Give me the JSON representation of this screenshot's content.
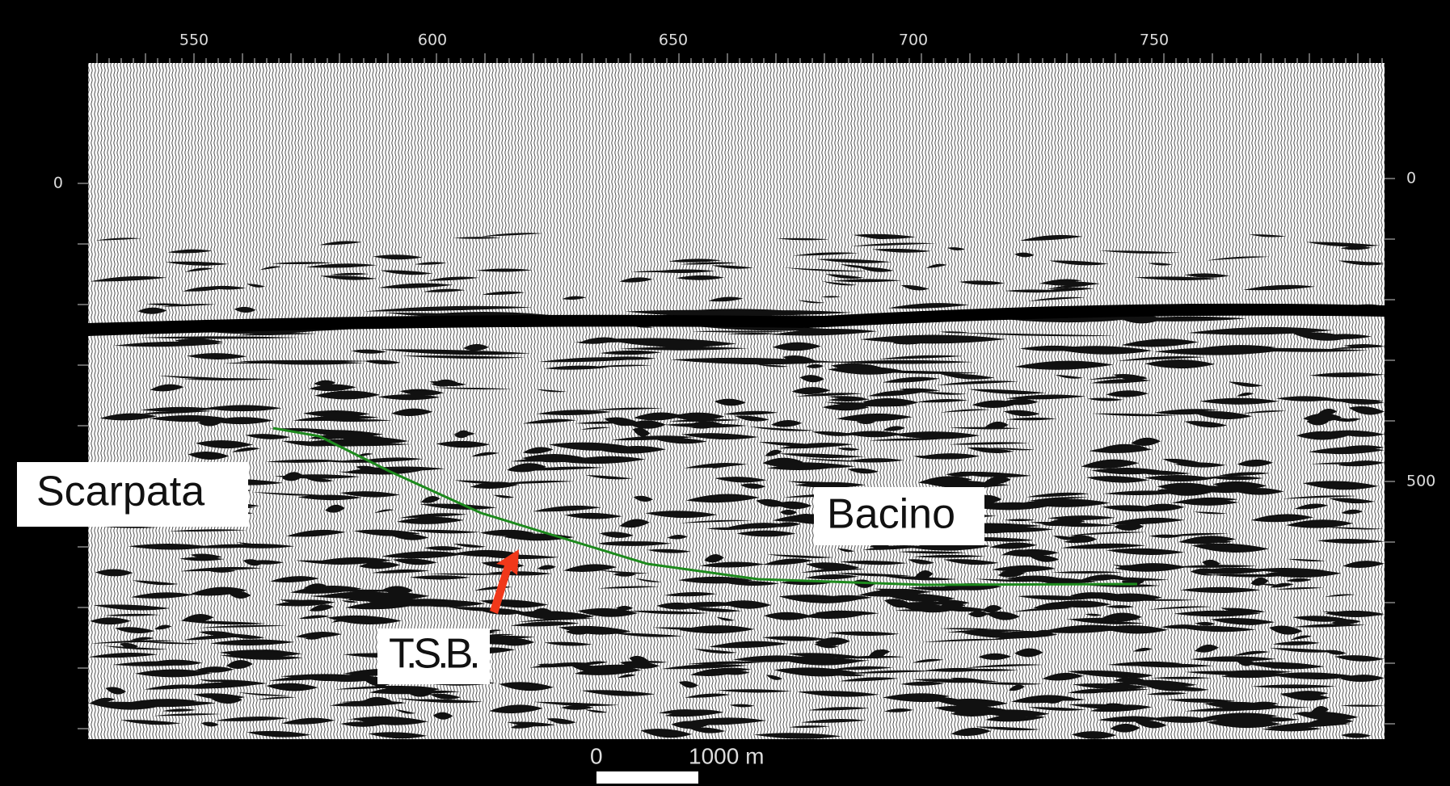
{
  "top_axis": {
    "labels": [
      "550",
      "600",
      "650",
      "700",
      "750"
    ]
  },
  "left_axis": {
    "labels": [
      "0"
    ]
  },
  "right_axis": {
    "labels": [
      "0",
      "500"
    ]
  },
  "annotations": {
    "slope": "Scarpata",
    "basin": "Bacino",
    "surface": "T.S.B."
  },
  "scale_bar": {
    "start": "0",
    "end": "1000 m"
  }
}
